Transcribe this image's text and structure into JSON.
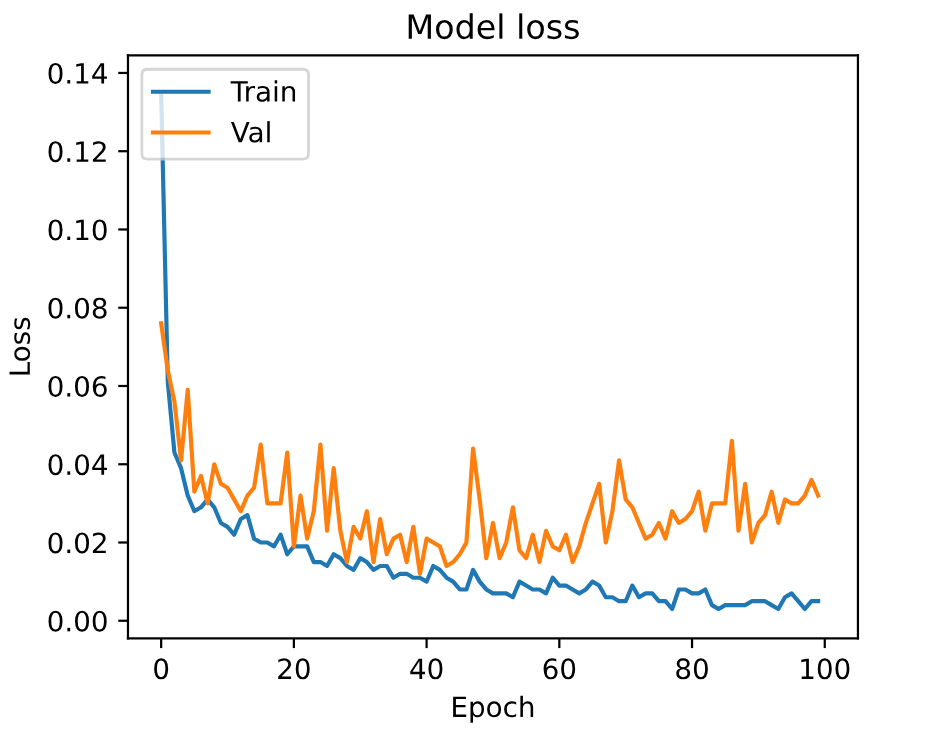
{
  "chart_data": {
    "type": "line",
    "title": "Model loss",
    "xlabel": "Epoch",
    "ylabel": "Loss",
    "x": [
      0,
      1,
      2,
      3,
      4,
      5,
      6,
      7,
      8,
      9,
      10,
      11,
      12,
      13,
      14,
      15,
      16,
      17,
      18,
      19,
      20,
      21,
      22,
      23,
      24,
      25,
      26,
      27,
      28,
      29,
      30,
      31,
      32,
      33,
      34,
      35,
      36,
      37,
      38,
      39,
      40,
      41,
      42,
      43,
      44,
      45,
      46,
      47,
      48,
      49,
      50,
      51,
      52,
      53,
      54,
      55,
      56,
      57,
      58,
      59,
      60,
      61,
      62,
      63,
      64,
      65,
      66,
      67,
      68,
      69,
      70,
      71,
      72,
      73,
      74,
      75,
      76,
      77,
      78,
      79,
      80,
      81,
      82,
      83,
      84,
      85,
      86,
      87,
      88,
      89,
      90,
      91,
      92,
      93,
      94,
      95,
      96,
      97,
      98,
      99
    ],
    "series": [
      {
        "name": "Train",
        "color": "#1f77b4",
        "values": [
          0.135,
          0.061,
          0.043,
          0.039,
          0.032,
          0.028,
          0.029,
          0.031,
          0.029,
          0.025,
          0.024,
          0.022,
          0.026,
          0.027,
          0.021,
          0.02,
          0.02,
          0.019,
          0.022,
          0.017,
          0.019,
          0.019,
          0.019,
          0.015,
          0.015,
          0.014,
          0.017,
          0.016,
          0.014,
          0.013,
          0.016,
          0.015,
          0.013,
          0.014,
          0.014,
          0.011,
          0.012,
          0.012,
          0.011,
          0.011,
          0.01,
          0.014,
          0.013,
          0.011,
          0.01,
          0.008,
          0.008,
          0.013,
          0.01,
          0.008,
          0.007,
          0.007,
          0.007,
          0.006,
          0.01,
          0.009,
          0.008,
          0.008,
          0.007,
          0.011,
          0.009,
          0.009,
          0.008,
          0.007,
          0.008,
          0.01,
          0.009,
          0.006,
          0.006,
          0.005,
          0.005,
          0.009,
          0.006,
          0.007,
          0.007,
          0.005,
          0.005,
          0.003,
          0.008,
          0.008,
          0.007,
          0.007,
          0.008,
          0.004,
          0.003,
          0.004,
          0.004,
          0.004,
          0.004,
          0.005,
          0.005,
          0.005,
          0.004,
          0.003,
          0.006,
          0.007,
          0.005,
          0.003,
          0.005,
          0.005
        ]
      },
      {
        "name": "Val",
        "color": "#ff7f0e",
        "values": [
          0.076,
          0.064,
          0.056,
          0.041,
          0.059,
          0.033,
          0.037,
          0.03,
          0.04,
          0.035,
          0.034,
          0.031,
          0.028,
          0.032,
          0.034,
          0.045,
          0.03,
          0.03,
          0.03,
          0.043,
          0.019,
          0.032,
          0.021,
          0.028,
          0.045,
          0.023,
          0.039,
          0.023,
          0.015,
          0.024,
          0.021,
          0.028,
          0.015,
          0.026,
          0.017,
          0.021,
          0.022,
          0.015,
          0.024,
          0.012,
          0.021,
          0.02,
          0.019,
          0.014,
          0.015,
          0.017,
          0.02,
          0.044,
          0.031,
          0.016,
          0.025,
          0.016,
          0.02,
          0.029,
          0.018,
          0.016,
          0.022,
          0.015,
          0.023,
          0.019,
          0.018,
          0.022,
          0.015,
          0.019,
          0.025,
          0.03,
          0.035,
          0.02,
          0.028,
          0.041,
          0.031,
          0.029,
          0.025,
          0.021,
          0.022,
          0.025,
          0.021,
          0.028,
          0.025,
          0.026,
          0.028,
          0.033,
          0.023,
          0.03,
          0.03,
          0.03,
          0.046,
          0.023,
          0.035,
          0.02,
          0.025,
          0.027,
          0.033,
          0.025,
          0.031,
          0.03,
          0.03,
          0.032,
          0.036,
          0.032
        ]
      }
    ],
    "xlim": [
      -5,
      105
    ],
    "ylim": [
      -0.0045,
      0.1445
    ],
    "xticks": [
      0,
      20,
      40,
      60,
      80,
      100
    ],
    "yticks": [
      {
        "value": 0,
        "label": "0.00"
      },
      {
        "value": 0.02,
        "label": "0.02"
      },
      {
        "value": 0.04,
        "label": "0.04"
      },
      {
        "value": 0.06,
        "label": "0.06"
      },
      {
        "value": 0.08,
        "label": "0.08"
      },
      {
        "value": 0.1,
        "label": "0.10"
      },
      {
        "value": 0.12,
        "label": "0.12"
      },
      {
        "value": 0.14,
        "label": "0.14"
      }
    ],
    "legend": "top left",
    "grid": false,
    "marker": "none",
    "line_style": "solid"
  }
}
